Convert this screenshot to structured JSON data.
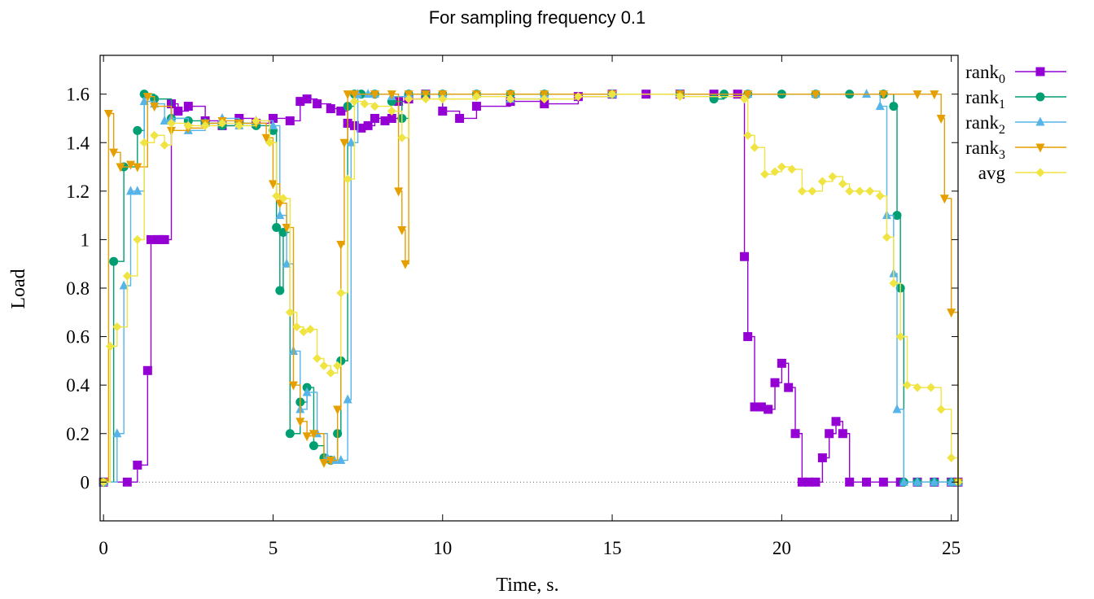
{
  "chart_data": {
    "type": "line",
    "title": "For sampling frequency 0.1",
    "xlabel": "Time, s.",
    "ylabel": "Load",
    "xlim": [
      -0.1,
      25.2
    ],
    "ylim": [
      -0.16,
      1.76
    ],
    "x_ticks": [
      0,
      5,
      10,
      15,
      20,
      25
    ],
    "y_ticks": [
      0,
      0.2,
      0.4,
      0.6,
      0.8,
      1,
      1.2,
      1.4,
      1.6
    ],
    "y_tick_labels": [
      "0",
      "0.2",
      "0.4",
      "0.6",
      "0.8",
      "1",
      "1.2",
      "1.4",
      "1.6"
    ],
    "zero_line": true,
    "grid": false,
    "legend_position": "outside-right",
    "series": [
      {
        "name": "rank",
        "subscript": "0",
        "color": "#9400d3",
        "marker": "square",
        "x": [
          0,
          0.7,
          1.0,
          1.3,
          1.4,
          1.6,
          1.7,
          1.8,
          2.0,
          2.2,
          2.5,
          3.0,
          3.5,
          4.0,
          4.5,
          5.0,
          5.5,
          5.8,
          6.0,
          6.3,
          6.7,
          7.0,
          7.2,
          7.4,
          7.6,
          7.8,
          8.0,
          8.3,
          8.5,
          8.7,
          9.0,
          9.5,
          10.0,
          10.5,
          11.0,
          12.0,
          13.0,
          14.0,
          15.0,
          16.0,
          17.0,
          18.0,
          18.7,
          18.9,
          19.0,
          19.2,
          19.4,
          19.6,
          19.8,
          20.0,
          20.2,
          20.4,
          20.6,
          20.8,
          21.0,
          21.2,
          21.4,
          21.6,
          21.8,
          22.0,
          22.5,
          23.0,
          23.5,
          24.0,
          24.5,
          25.0,
          25.2
        ],
        "y": [
          0,
          0,
          0.07,
          0.46,
          1.0,
          1.0,
          1.0,
          1.0,
          1.56,
          1.53,
          1.55,
          1.49,
          1.47,
          1.5,
          1.48,
          1.5,
          1.49,
          1.57,
          1.58,
          1.56,
          1.54,
          1.53,
          1.48,
          1.47,
          1.46,
          1.47,
          1.5,
          1.49,
          1.5,
          1.57,
          1.58,
          1.6,
          1.53,
          1.5,
          1.55,
          1.57,
          1.56,
          1.59,
          1.6,
          1.6,
          1.6,
          1.6,
          1.6,
          0.93,
          0.6,
          0.31,
          0.31,
          0.3,
          0.41,
          0.49,
          0.39,
          0.2,
          0,
          0,
          0,
          0.1,
          0.2,
          0.25,
          0.2,
          0,
          0,
          0,
          0,
          0,
          0,
          0,
          0
        ]
      },
      {
        "name": "rank",
        "subscript": "1",
        "color": "#009e73",
        "marker": "circle",
        "x": [
          0,
          0.3,
          0.6,
          1.0,
          1.2,
          1.5,
          2.0,
          2.5,
          3.0,
          3.5,
          4.0,
          4.5,
          5.0,
          5.1,
          5.2,
          5.3,
          5.5,
          5.8,
          6.0,
          6.2,
          6.5,
          6.7,
          6.9,
          7.0,
          7.2,
          7.4,
          7.6,
          8.0,
          8.5,
          8.8,
          9.0,
          9.5,
          10.0,
          11.0,
          12.0,
          13.0,
          15.0,
          17.0,
          18.0,
          18.3,
          19.0,
          20.0,
          21.0,
          22.0,
          23.0,
          23.3,
          23.4,
          23.5,
          23.6,
          24.0,
          24.5,
          25.0,
          25.2
        ],
        "y": [
          0,
          0.91,
          1.3,
          1.45,
          1.6,
          1.58,
          1.5,
          1.49,
          1.48,
          1.47,
          1.48,
          1.47,
          1.45,
          1.05,
          0.79,
          1.03,
          0.2,
          0.33,
          0.39,
          0.15,
          0.1,
          0.09,
          0.2,
          0.5,
          1.55,
          1.6,
          1.6,
          1.6,
          1.57,
          1.5,
          1.6,
          1.6,
          1.6,
          1.6,
          1.6,
          1.6,
          1.6,
          1.6,
          1.58,
          1.6,
          1.6,
          1.6,
          1.6,
          1.6,
          1.6,
          1.55,
          1.1,
          0.8,
          0,
          0,
          0,
          0,
          0
        ]
      },
      {
        "name": "rank",
        "subscript": "2",
        "color": "#56b4e9",
        "marker": "triangle-up",
        "x": [
          0,
          0.4,
          0.6,
          0.8,
          1.0,
          1.2,
          1.5,
          1.8,
          2.0,
          2.5,
          3.0,
          3.5,
          4.0,
          4.5,
          5.0,
          5.2,
          5.4,
          5.6,
          5.8,
          6.0,
          6.3,
          6.6,
          6.8,
          7.0,
          7.2,
          7.3,
          7.5,
          7.8,
          8.0,
          8.5,
          9.0,
          10.0,
          11.0,
          12.0,
          13.0,
          15.0,
          17.0,
          19.0,
          21.0,
          22.5,
          22.9,
          23.1,
          23.3,
          23.4,
          23.6,
          24.0,
          24.5,
          25.0,
          25.2
        ],
        "y": [
          0,
          0.2,
          0.81,
          1.2,
          1.2,
          1.57,
          1.56,
          1.49,
          1.5,
          1.45,
          1.48,
          1.5,
          1.47,
          1.49,
          1.47,
          1.1,
          0.9,
          0.54,
          0.3,
          0.37,
          0.2,
          0.1,
          0.09,
          0.09,
          0.34,
          1.4,
          1.6,
          1.6,
          1.6,
          1.59,
          1.6,
          1.6,
          1.6,
          1.58,
          1.6,
          1.6,
          1.6,
          1.6,
          1.6,
          1.6,
          1.55,
          1.1,
          0.86,
          0.3,
          0,
          0,
          0,
          0,
          0
        ]
      },
      {
        "name": "rank",
        "subscript": "3",
        "color": "#e69f00",
        "marker": "triangle-down",
        "x": [
          0,
          0.15,
          0.3,
          0.5,
          0.8,
          1.0,
          1.3,
          1.5,
          2.0,
          2.5,
          3.0,
          3.5,
          4.0,
          4.5,
          4.8,
          5.0,
          5.2,
          5.4,
          5.6,
          5.8,
          6.0,
          6.2,
          6.5,
          6.7,
          6.9,
          7.0,
          7.1,
          7.2,
          7.4,
          8.0,
          8.5,
          8.7,
          8.8,
          8.9,
          9.0,
          9.5,
          10.0,
          11.0,
          12.0,
          13.0,
          15.0,
          17.0,
          19.0,
          21.0,
          23.0,
          24.0,
          24.5,
          24.7,
          24.8,
          25.0,
          25.2
        ],
        "y": [
          0,
          1.52,
          1.36,
          1.3,
          1.31,
          1.3,
          1.59,
          1.55,
          1.45,
          1.46,
          1.48,
          1.49,
          1.48,
          1.48,
          1.42,
          1.23,
          1.15,
          1.05,
          0.4,
          0.25,
          0.19,
          0.2,
          0.08,
          0.09,
          0.3,
          0.98,
          1.4,
          1.6,
          1.6,
          1.6,
          1.6,
          1.2,
          1.04,
          0.9,
          1.6,
          1.6,
          1.6,
          1.6,
          1.6,
          1.6,
          1.6,
          1.6,
          1.6,
          1.6,
          1.6,
          1.6,
          1.6,
          1.5,
          1.17,
          0.7,
          0
        ]
      },
      {
        "name": "avg",
        "color": "#f0e442",
        "marker": "diamond",
        "x": [
          0,
          0.2,
          0.4,
          0.7,
          1.0,
          1.2,
          1.5,
          1.8,
          2.0,
          2.5,
          3.0,
          3.5,
          4.0,
          4.5,
          4.9,
          5.1,
          5.3,
          5.5,
          5.7,
          5.9,
          6.1,
          6.3,
          6.5,
          6.7,
          6.9,
          7.0,
          7.2,
          7.4,
          7.7,
          8.0,
          8.5,
          8.8,
          9.0,
          9.5,
          10.0,
          11.0,
          12.0,
          13.0,
          14.0,
          15.0,
          17.0,
          18.9,
          19.0,
          19.2,
          19.5,
          19.8,
          20.0,
          20.3,
          20.6,
          20.9,
          21.2,
          21.5,
          21.8,
          22.0,
          22.3,
          22.6,
          22.9,
          23.1,
          23.3,
          23.5,
          23.7,
          24.0,
          24.4,
          24.7,
          25.0,
          25.2
        ],
        "y": [
          0,
          0.56,
          0.64,
          0.85,
          1.0,
          1.4,
          1.43,
          1.39,
          1.48,
          1.47,
          1.47,
          1.48,
          1.47,
          1.49,
          1.4,
          1.18,
          1.17,
          0.7,
          0.64,
          0.62,
          0.63,
          0.51,
          0.48,
          0.45,
          0.48,
          0.78,
          1.25,
          1.57,
          1.56,
          1.55,
          1.53,
          1.42,
          1.58,
          1.58,
          1.58,
          1.59,
          1.58,
          1.58,
          1.59,
          1.6,
          1.59,
          1.58,
          1.43,
          1.38,
          1.27,
          1.28,
          1.3,
          1.29,
          1.2,
          1.2,
          1.24,
          1.26,
          1.23,
          1.2,
          1.2,
          1.2,
          1.18,
          1.01,
          0.82,
          0.6,
          0.4,
          0.39,
          0.39,
          0.3,
          0.1,
          0
        ]
      }
    ]
  }
}
